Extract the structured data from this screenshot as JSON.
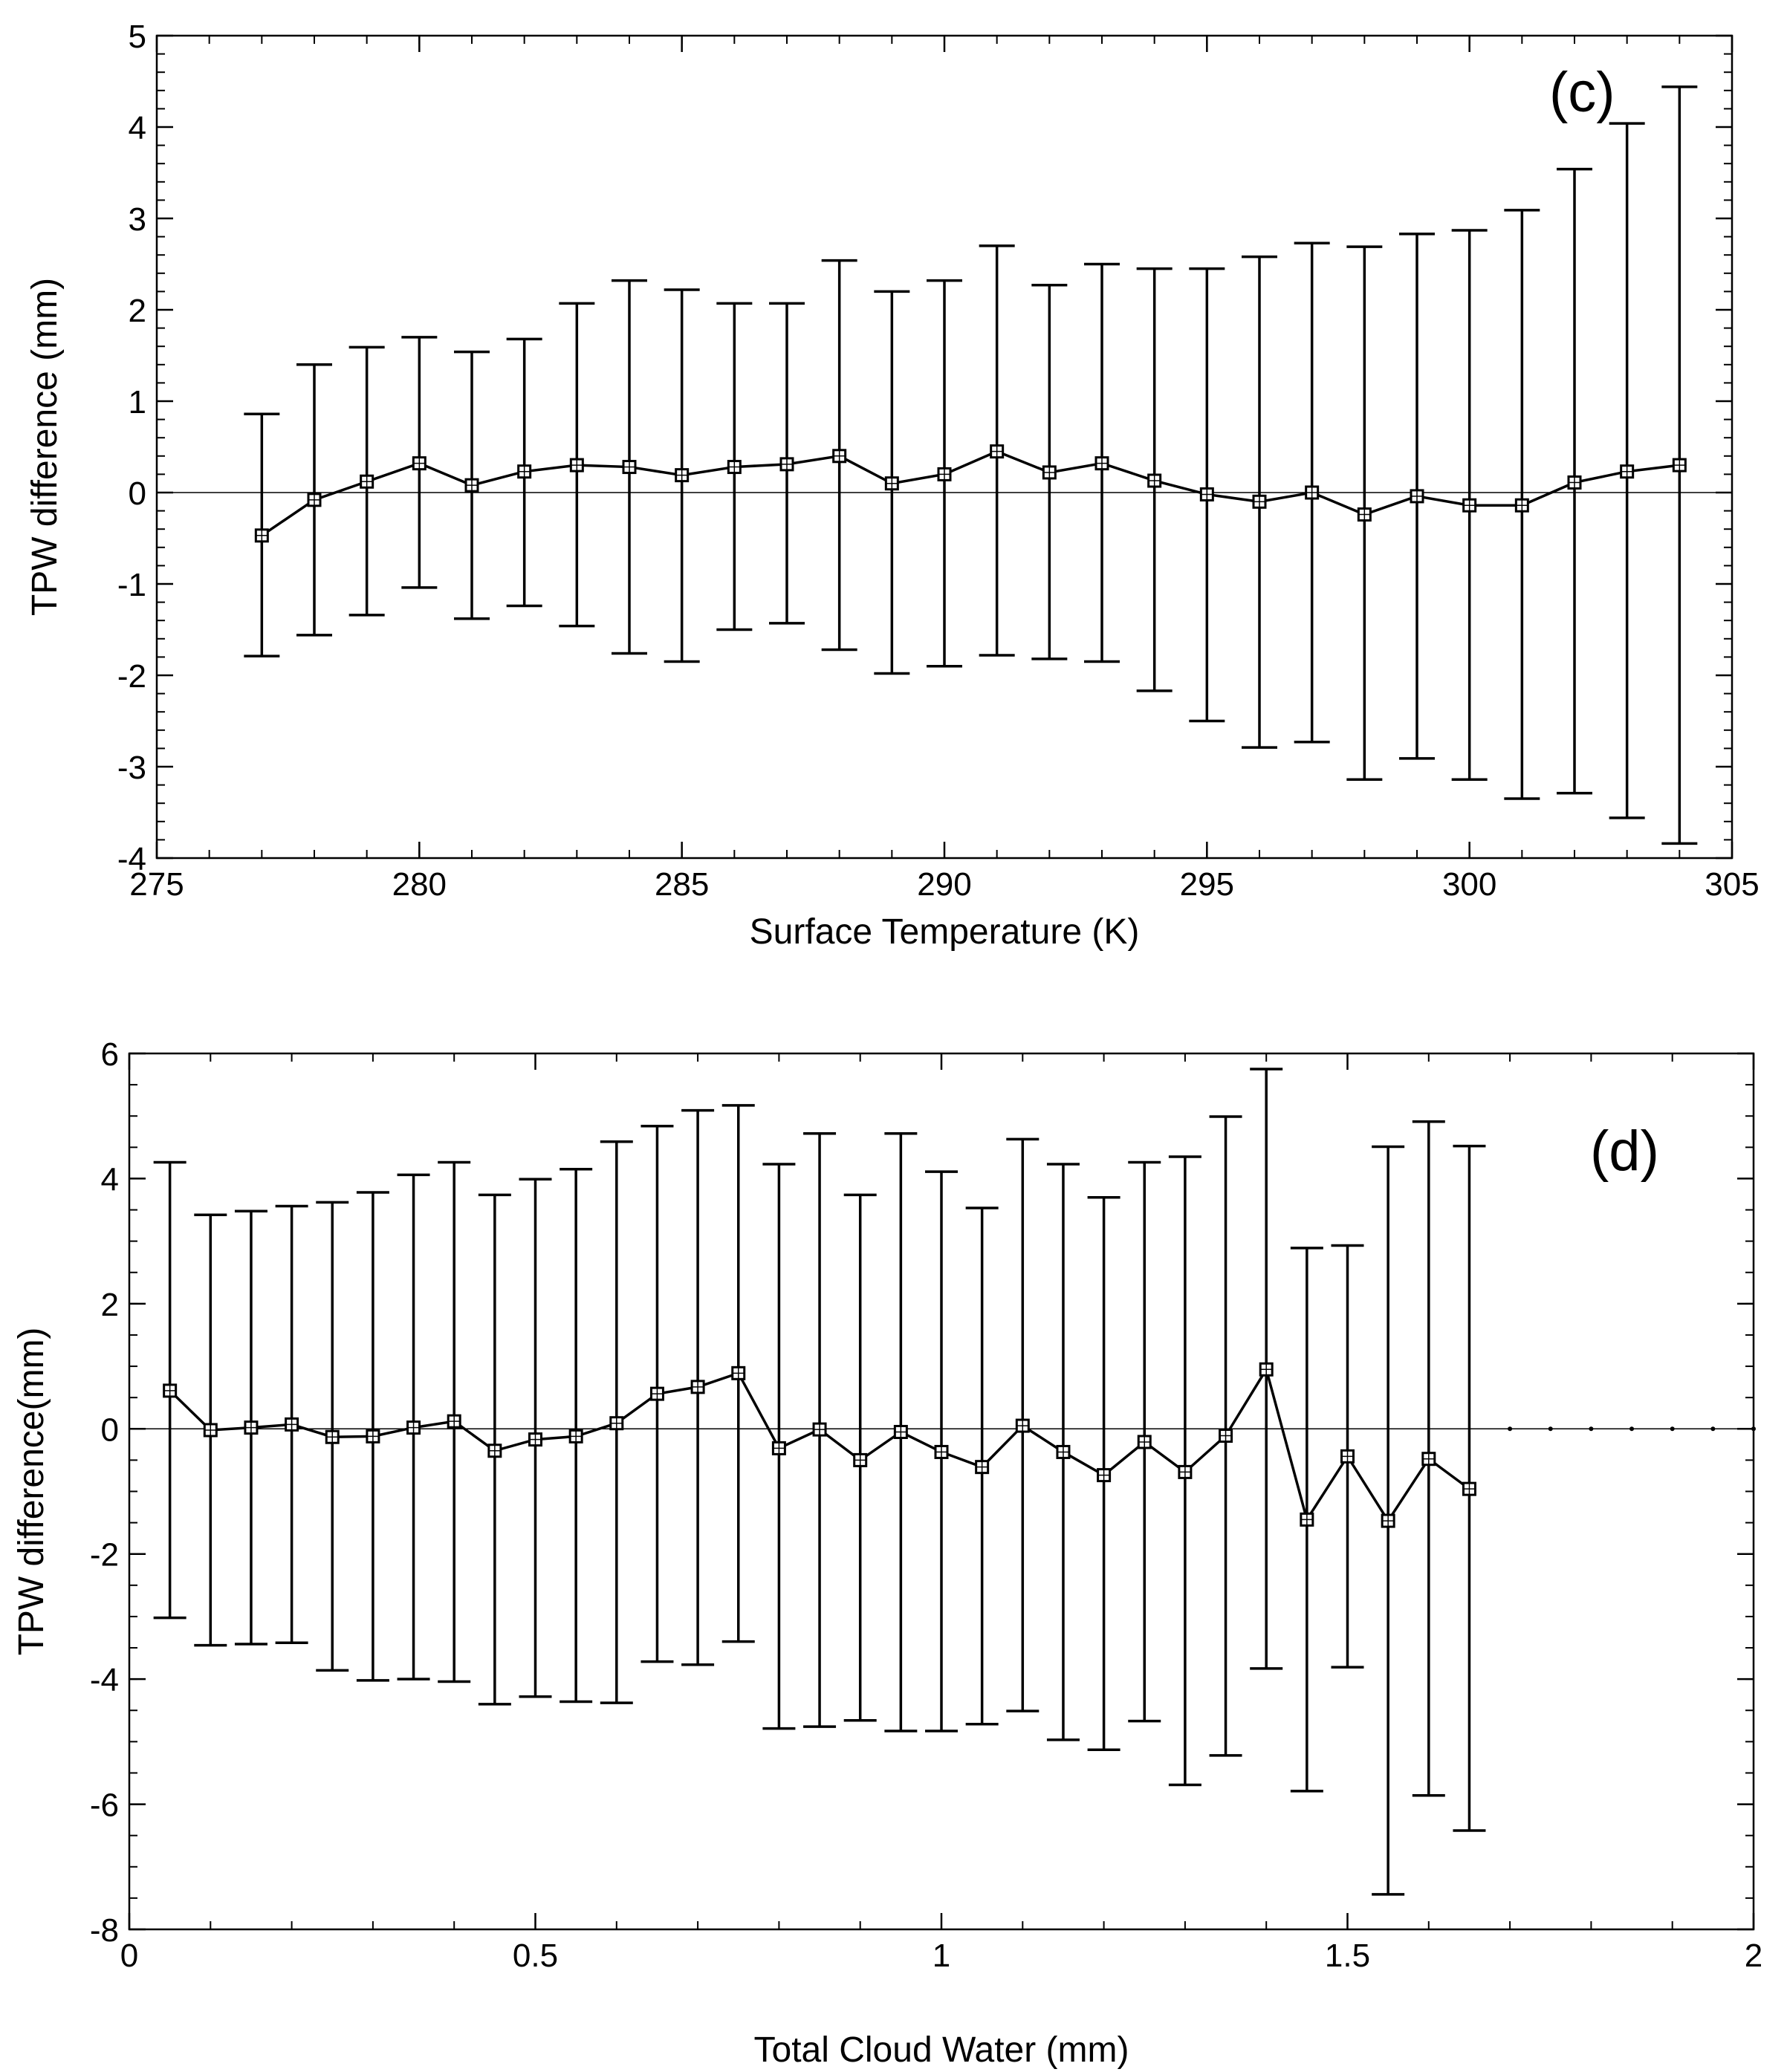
{
  "chart_data": [
    {
      "type": "line",
      "panel_label": "(c)",
      "xlabel": "Surface Temperature (K)",
      "ylabel": "TPW difference (mm)",
      "xlim": [
        275,
        305
      ],
      "ylim": [
        -4,
        5
      ],
      "xticks": [
        275,
        280,
        285,
        290,
        295,
        300,
        305
      ],
      "yticks": [
        -4,
        -3,
        -2,
        -1,
        0,
        1,
        2,
        3,
        4,
        5
      ],
      "x_minor_step": 1,
      "y_minor_step": 0.2,
      "zero_line": true,
      "marker": "square",
      "error_bars": true,
      "x": [
        277,
        278,
        279,
        280,
        281,
        282,
        283,
        284,
        285,
        286,
        287,
        288,
        289,
        290,
        291,
        292,
        293,
        294,
        295,
        296,
        297,
        298,
        299,
        300,
        301,
        302,
        303,
        304
      ],
      "y": [
        -0.47,
        -0.08,
        0.12,
        0.32,
        0.08,
        0.23,
        0.3,
        0.28,
        0.19,
        0.28,
        0.31,
        0.4,
        0.1,
        0.2,
        0.45,
        0.22,
        0.32,
        0.13,
        -0.02,
        -0.1,
        0.0,
        -0.24,
        -0.04,
        -0.14,
        -0.14,
        0.11,
        0.23,
        0.3
      ],
      "upper": [
        0.86,
        1.4,
        1.59,
        1.7,
        1.54,
        1.68,
        2.07,
        2.32,
        2.22,
        2.07,
        2.07,
        2.54,
        2.2,
        2.32,
        2.7,
        2.27,
        2.5,
        2.45,
        2.45,
        2.58,
        2.73,
        2.69,
        2.83,
        2.87,
        3.09,
        3.54,
        4.04,
        4.44
      ],
      "lower": [
        -1.79,
        -1.56,
        -1.34,
        -1.04,
        -1.38,
        -1.24,
        -1.46,
        -1.76,
        -1.85,
        -1.5,
        -1.43,
        -1.72,
        -1.98,
        -1.9,
        -1.78,
        -1.82,
        -1.85,
        -2.17,
        -2.5,
        -2.79,
        -2.73,
        -3.14,
        -2.91,
        -3.14,
        -3.35,
        -3.29,
        -3.56,
        -3.84
      ]
    },
    {
      "type": "line",
      "panel_label": "(d)",
      "xlabel": "Total Cloud Water (mm)",
      "ylabel": "TPW difference(mm)",
      "xlim": [
        0,
        2
      ],
      "ylim": [
        -8,
        6
      ],
      "xticks": [
        0,
        0.5,
        1,
        1.5,
        2
      ],
      "xtick_labels": [
        "0",
        "0.5",
        "1",
        "1.5",
        "2"
      ],
      "yticks": [
        -8,
        -6,
        -4,
        -2,
        0,
        2,
        4,
        6
      ],
      "x_minor_step": 0.1,
      "y_minor_step": 0.5,
      "zero_line": true,
      "marker": "square",
      "error_bars": true,
      "x": [
        0.05,
        0.1,
        0.15,
        0.2,
        0.25,
        0.3,
        0.35,
        0.4,
        0.45,
        0.5,
        0.55,
        0.6,
        0.65,
        0.7,
        0.75,
        0.8,
        0.85,
        0.9,
        0.95,
        1.0,
        1.05,
        1.1,
        1.15,
        1.2,
        1.25,
        1.3,
        1.35,
        1.4,
        1.45,
        1.5,
        1.55,
        1.6,
        1.65
      ],
      "y": [
        0.61,
        -0.02,
        0.02,
        0.07,
        -0.13,
        -0.12,
        0.02,
        0.12,
        -0.35,
        -0.17,
        -0.12,
        0.09,
        0.56,
        0.67,
        0.89,
        -0.31,
        -0.01,
        -0.5,
        -0.05,
        -0.37,
        -0.61,
        0.05,
        -0.37,
        -0.74,
        -0.21,
        -0.69,
        -0.11,
        0.95,
        -1.45,
        -0.44,
        -1.47,
        -0.48,
        -0.96
      ],
      "upper": [
        4.26,
        3.42,
        3.48,
        3.56,
        3.62,
        3.78,
        4.06,
        4.26,
        3.74,
        3.99,
        4.15,
        4.59,
        4.84,
        5.09,
        5.17,
        4.23,
        4.72,
        3.74,
        4.72,
        4.11,
        3.53,
        4.63,
        4.23,
        3.7,
        4.26,
        4.35,
        4.99,
        5.75,
        2.89,
        2.93,
        4.51,
        4.91,
        4.52
      ],
      "lower": [
        -3.02,
        -3.46,
        -3.44,
        -3.42,
        -3.86,
        -4.02,
        -4.0,
        -4.04,
        -4.4,
        -4.28,
        -4.36,
        -4.38,
        -3.72,
        -3.77,
        -3.4,
        -4.79,
        -4.76,
        -4.66,
        -4.83,
        -4.83,
        -4.72,
        -4.51,
        -4.97,
        -5.13,
        -4.67,
        -5.69,
        -5.22,
        -3.83,
        -5.79,
        -3.81,
        -7.44,
        -5.86,
        -6.42
      ],
      "dotted_extension_x": [
        1.7,
        1.75,
        1.8,
        1.85,
        1.9,
        1.95,
        2.0
      ]
    }
  ]
}
